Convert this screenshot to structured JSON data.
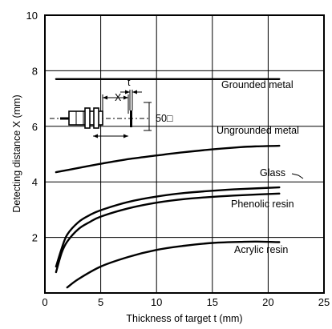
{
  "chart_data": {
    "type": "line",
    "xlabel": "Thickness of target t (mm)",
    "ylabel": "Detecting distance X (mm)",
    "xlim": [
      0,
      25
    ],
    "ylim": [
      0,
      10
    ],
    "xticks": [
      "0",
      "5",
      "10",
      "15",
      "20",
      "25"
    ],
    "yticks": [
      "2",
      "4",
      "6",
      "8",
      "10"
    ],
    "grid": true,
    "series": [
      {
        "name": "Grounded metal",
        "x": [
          1,
          21
        ],
        "y": [
          7.7,
          7.7
        ]
      },
      {
        "name": "Ungrounded metal",
        "x": [
          1,
          3,
          5,
          7.5,
          10,
          12.5,
          15,
          17.5,
          19,
          21
        ],
        "y": [
          4.35,
          4.5,
          4.65,
          4.82,
          4.95,
          5.07,
          5.17,
          5.25,
          5.28,
          5.3
        ]
      },
      {
        "name": "Glass",
        "x": [
          1,
          1.5,
          2,
          3,
          4,
          5,
          7.5,
          10,
          12.5,
          15,
          17.5,
          21
        ],
        "y": [
          0.95,
          1.6,
          2.1,
          2.55,
          2.8,
          2.98,
          3.28,
          3.47,
          3.6,
          3.68,
          3.74,
          3.8
        ]
      },
      {
        "name": "Phenolic resin",
        "x": [
          1,
          1.5,
          2,
          3,
          4,
          5,
          7.5,
          10,
          12.5,
          15,
          17.5,
          21
        ],
        "y": [
          0.75,
          1.45,
          1.85,
          2.3,
          2.55,
          2.75,
          3.05,
          3.25,
          3.38,
          3.46,
          3.52,
          3.58
        ]
      },
      {
        "name": "Acrylic resin",
        "x": [
          2,
          3,
          5,
          7.5,
          10,
          12.5,
          15,
          17.5,
          19,
          21
        ],
        "y": [
          0.2,
          0.5,
          0.95,
          1.3,
          1.55,
          1.7,
          1.8,
          1.84,
          1.85,
          1.83
        ]
      }
    ],
    "inset": {
      "x_label": "X",
      "t_label": "t",
      "size_label": "50□"
    }
  }
}
